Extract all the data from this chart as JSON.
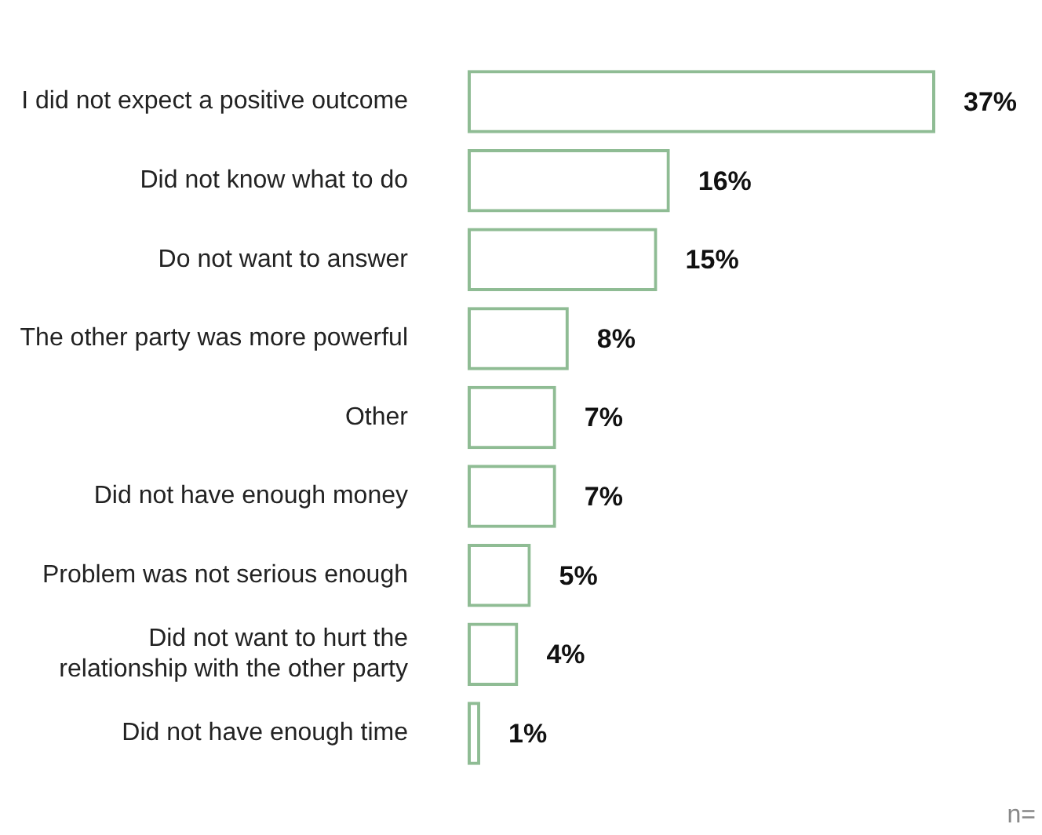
{
  "chart_data": {
    "type": "bar",
    "orientation": "horizontal",
    "categories": [
      "I did not expect a positive outcome",
      "Did not know what to do",
      "Do not want to answer",
      "The other party was more powerful",
      "Other",
      "Did not have enough money",
      "Problem was not serious enough",
      "Did not want to hurt the\nrelationship with the other party",
      "Did not have enough time"
    ],
    "values": [
      37,
      16,
      15,
      8,
      7,
      7,
      5,
      4,
      1
    ],
    "value_labels": [
      "37%",
      "16%",
      "15%",
      "8%",
      "7%",
      "7%",
      "5%",
      "4%",
      "1%"
    ],
    "color": "#8fbc94",
    "annotations": [
      "n="
    ]
  }
}
